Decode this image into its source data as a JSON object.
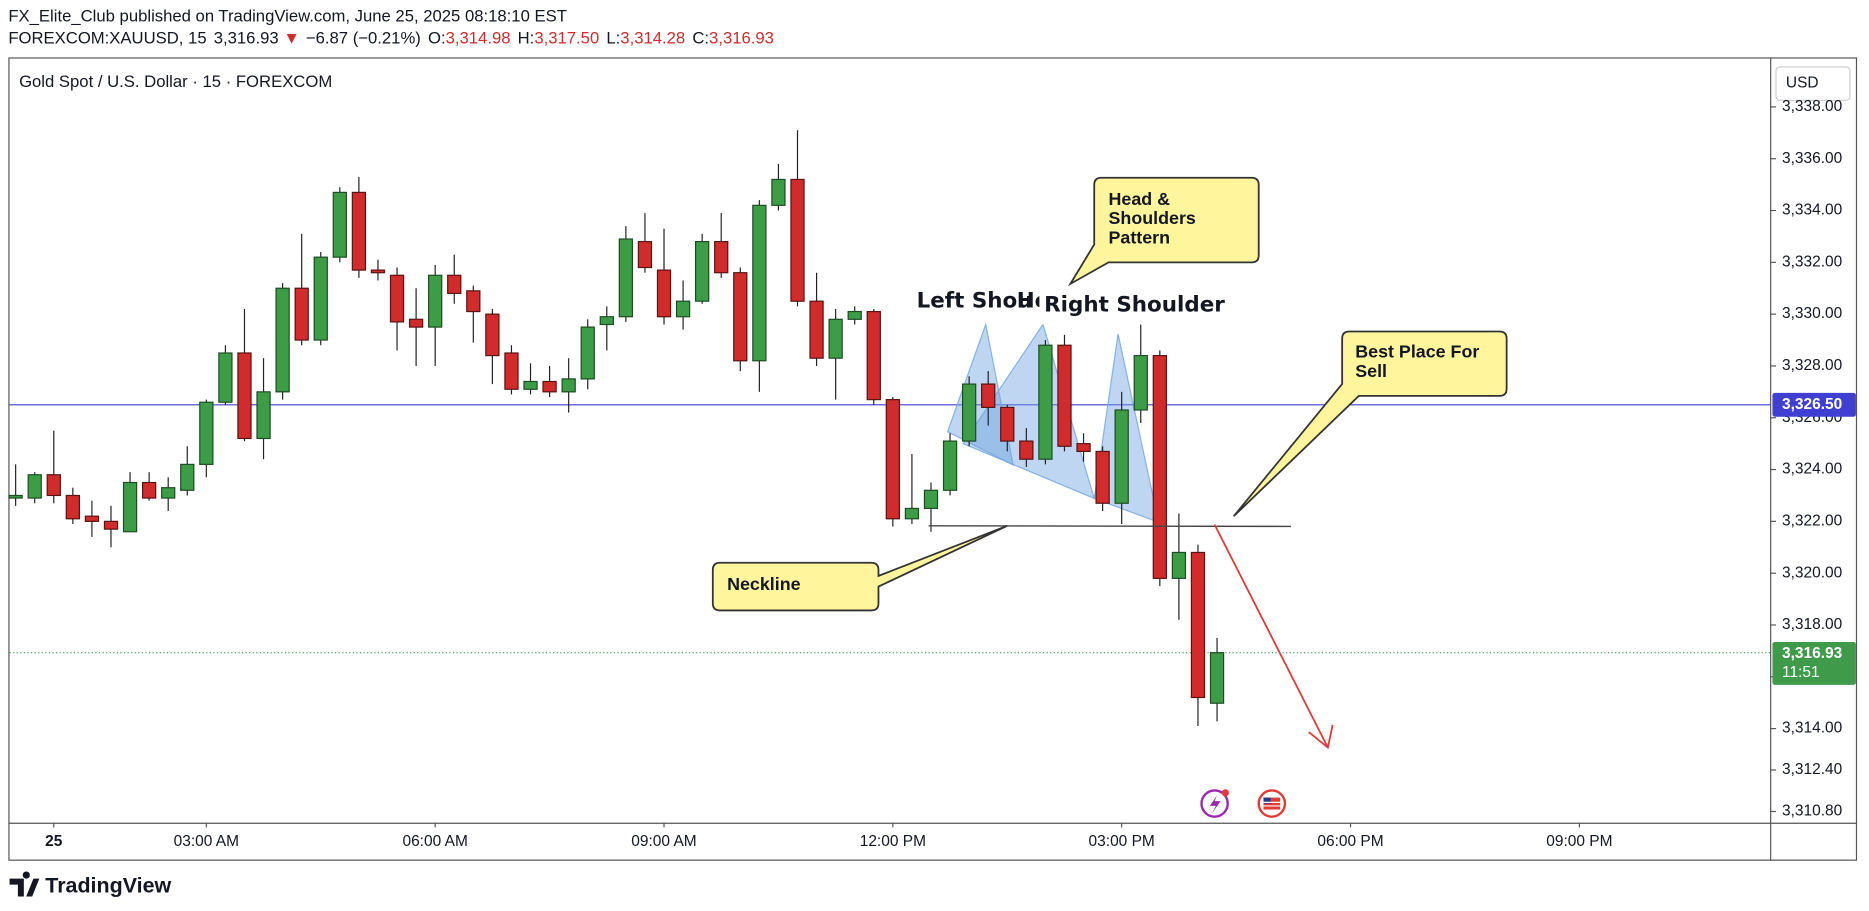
{
  "header": {
    "publisher": "FX_Elite_Club published on TradingView.com, June 25, 2025 08:18:10 EST",
    "symbol": "FOREXCOM:XAUUSD, 15",
    "price": "3,316.93",
    "arrow": "▼",
    "change": "−6.87 (−0.21%)",
    "o_label": "O:",
    "o": "3,314.98",
    "h_label": "H:",
    "h": "3,317.50",
    "l_label": "L:",
    "l": "3,314.28",
    "c_label": "C:",
    "c": "3,316.93"
  },
  "footer": {
    "brand": "TradingView"
  },
  "chart_data": {
    "type": "candlestick",
    "title": "Gold Spot / U.S. Dollar · 15 · FOREXCOM",
    "currency": "USD",
    "up_color": "#3c9d46",
    "down_color": "#d22b2b",
    "x": [
      0.5,
      0.75,
      1,
      1.25,
      1.5,
      1.75,
      2,
      2.25,
      2.5,
      2.75,
      3,
      3.25,
      3.5,
      3.75,
      4,
      4.25,
      4.5,
      4.75,
      5,
      5.25,
      5.5,
      5.75,
      6,
      6.25,
      6.5,
      6.75,
      7,
      7.25,
      7.5,
      7.75,
      8,
      8.25,
      8.5,
      8.75,
      9,
      9.25,
      9.5,
      9.75,
      10,
      10.25,
      10.5,
      10.75,
      11,
      11.25,
      11.5,
      11.75,
      12,
      12.25,
      12.5,
      12.75,
      13,
      13.25,
      13.5,
      13.75,
      14,
      14.25,
      14.5,
      14.75,
      15,
      15.25,
      15.5,
      15.75,
      16,
      16.25
    ],
    "open": [
      3322.9,
      3322.9,
      3323.8,
      3323.0,
      3322.2,
      3322.0,
      3321.6,
      3323.5,
      3322.9,
      3323.2,
      3324.2,
      3326.6,
      3328.5,
      3325.2,
      3327.0,
      3331.0,
      3329.0,
      3332.2,
      3334.7,
      3331.7,
      3331.5,
      3329.8,
      3329.5,
      3331.5,
      3330.9,
      3330.0,
      3328.5,
      3327.1,
      3327.4,
      3327.0,
      3327.5,
      3329.6,
      3329.9,
      3332.8,
      3331.7,
      3329.9,
      3330.5,
      3332.8,
      3331.6,
      3328.2,
      3334.2,
      3335.2,
      3330.5,
      3328.3,
      3329.8,
      3330.1,
      3326.7,
      3322.1,
      3322.5,
      3323.2,
      3325.1,
      3327.3,
      3326.4,
      3325.1,
      3324.4,
      3328.8,
      3325.0,
      3324.7,
      3322.7,
      3326.3,
      3328.4,
      3319.8,
      3320.8,
      3314.98
    ],
    "high": [
      3324.2,
      3323.9,
      3325.5,
      3323.3,
      3322.8,
      3322.6,
      3323.9,
      3323.9,
      3323.7,
      3324.9,
      3326.7,
      3328.8,
      3330.2,
      3328.3,
      3331.2,
      3333.1,
      3332.4,
      3334.9,
      3335.3,
      3332.1,
      3331.8,
      3331.0,
      3331.9,
      3332.3,
      3331.1,
      3330.2,
      3328.8,
      3328.1,
      3328.0,
      3328.3,
      3329.8,
      3330.3,
      3333.4,
      3333.9,
      3333.3,
      3331.3,
      3333.1,
      3333.9,
      3331.8,
      3334.4,
      3335.8,
      3337.1,
      3331.6,
      3330.2,
      3330.3,
      3330.2,
      3326.8,
      3324.6,
      3323.5,
      3325.4,
      3327.6,
      3327.8,
      3326.5,
      3325.6,
      3329.0,
      3329.2,
      3325.4,
      3324.9,
      3327.0,
      3329.6,
      3328.6,
      3322.3,
      3321.1,
      3317.5
    ],
    "low": [
      3322.6,
      3322.7,
      3322.7,
      3321.9,
      3321.4,
      3321.0,
      3321.6,
      3322.8,
      3322.4,
      3323.0,
      3323.7,
      3326.5,
      3325.1,
      3324.4,
      3326.7,
      3328.8,
      3328.8,
      3332.0,
      3331.4,
      3331.3,
      3328.6,
      3328.0,
      3328.0,
      3330.4,
      3328.9,
      3327.3,
      3326.9,
      3326.9,
      3326.8,
      3326.2,
      3327.1,
      3328.6,
      3329.7,
      3331.6,
      3329.6,
      3329.4,
      3330.4,
      3331.4,
      3327.8,
      3327.0,
      3334.0,
      3330.3,
      3328.0,
      3326.7,
      3329.6,
      3326.5,
      3321.8,
      3321.9,
      3321.6,
      3323.0,
      3324.9,
      3325.7,
      3324.7,
      3324.1,
      3324.2,
      3324.7,
      3324.3,
      3322.4,
      3321.9,
      3325.8,
      3319.5,
      3318.2,
      3314.1,
      3314.28
    ],
    "close": [
      3323.0,
      3323.8,
      3323.0,
      3322.1,
      3322.0,
      3321.7,
      3323.5,
      3322.9,
      3323.3,
      3324.2,
      3326.6,
      3328.5,
      3325.2,
      3327.0,
      3331.0,
      3329.0,
      3332.2,
      3334.7,
      3331.7,
      3331.6,
      3329.7,
      3329.5,
      3331.5,
      3330.8,
      3330.1,
      3328.4,
      3327.1,
      3327.4,
      3327.0,
      3327.5,
      3329.5,
      3329.9,
      3332.9,
      3331.8,
      3329.9,
      3330.5,
      3332.8,
      3331.6,
      3328.2,
      3334.2,
      3335.2,
      3330.5,
      3328.3,
      3329.8,
      3330.1,
      3326.7,
      3322.1,
      3322.5,
      3323.2,
      3325.1,
      3327.3,
      3326.4,
      3325.1,
      3324.4,
      3328.8,
      3324.9,
      3324.7,
      3322.7,
      3326.3,
      3328.4,
      3319.8,
      3320.8,
      3315.2,
      3316.93
    ],
    "xlim": [
      0.42,
      23.5
    ],
    "xticks": [
      {
        "value": 1,
        "label": "25"
      },
      {
        "value": 3,
        "label": "03:00 AM"
      },
      {
        "value": 6,
        "label": "06:00 AM"
      },
      {
        "value": 9,
        "label": "09:00 AM"
      },
      {
        "value": 12,
        "label": "12:00 PM"
      },
      {
        "value": 15,
        "label": "03:00 PM"
      },
      {
        "value": 18,
        "label": "06:00 PM"
      },
      {
        "value": 21,
        "label": "09:00 PM"
      }
    ],
    "ylim": [
      3310.37,
      3339.82
    ],
    "yticks": [
      {
        "value": 3310.8,
        "label": "3,310.80"
      },
      {
        "value": 3312.4,
        "label": "3,312.40"
      },
      {
        "value": 3314,
        "label": "3,314.00"
      },
      {
        "value": 3316,
        "label": "3,316.00"
      },
      {
        "value": 3318,
        "label": "3,318.00"
      },
      {
        "value": 3320,
        "label": "3,320.00"
      },
      {
        "value": 3322,
        "label": "3,322.00"
      },
      {
        "value": 3324,
        "label": "3,324.00"
      },
      {
        "value": 3326,
        "label": "3,326.00"
      },
      {
        "value": 3328,
        "label": "3,328.00"
      },
      {
        "value": 3330,
        "label": "3,330.00"
      },
      {
        "value": 3332,
        "label": "3,332.00"
      },
      {
        "value": 3334,
        "label": "3,334.00"
      },
      {
        "value": 3336,
        "label": "3,336.00"
      },
      {
        "value": 3338,
        "label": "3,338.00"
      }
    ],
    "price_line": {
      "value": 3326.5,
      "label": "3,326.50",
      "color": "#3f3fd1"
    },
    "last_price": {
      "value": 3316.93,
      "label": "3,316.93",
      "countdown": "11:51",
      "color": "#3f9a4a"
    },
    "annotations": {
      "pattern": [
        "Head &",
        "Shoulders",
        "Pattern"
      ],
      "sell": [
        "Best Place For",
        "Sell"
      ],
      "neckline": "Neckline",
      "left_shoulder": "Left Shou",
      "head": "He",
      "right_shoulder": "Right Shoulder"
    }
  }
}
